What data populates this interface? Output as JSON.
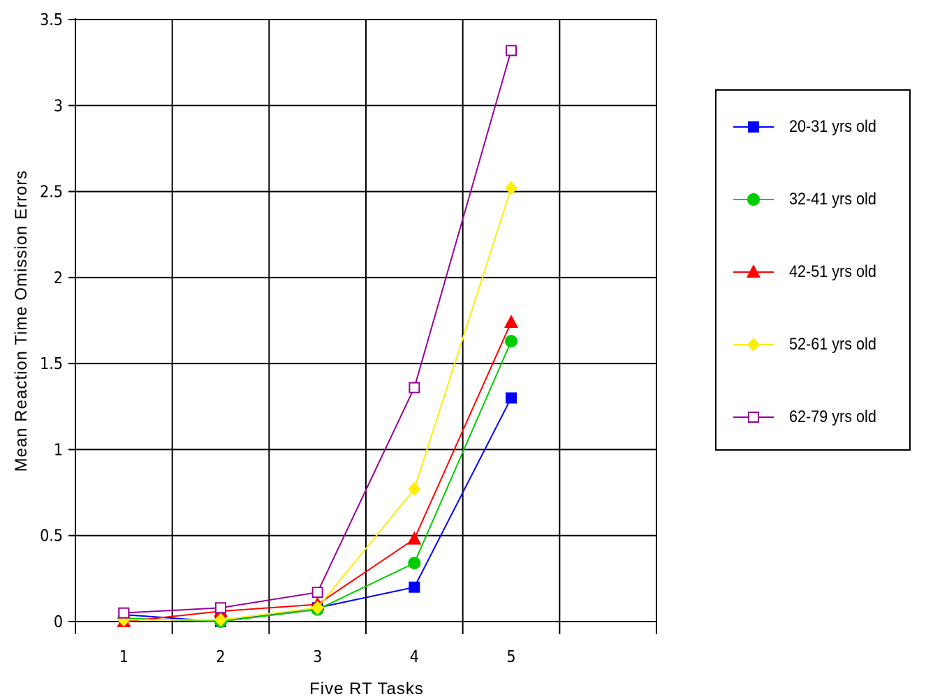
{
  "chart_data": {
    "type": "line",
    "title": "",
    "xlabel": "Five RT Tasks",
    "ylabel": "Mean Reaction Time Omission Errors",
    "x": [
      1,
      2,
      3,
      4,
      5
    ],
    "x_ticks": [
      "1",
      "2",
      "3",
      "4",
      "5"
    ],
    "xlim": [
      0.5,
      6.5
    ],
    "ylim": [
      0,
      3.5
    ],
    "y_ticks": [
      "0",
      "0.5",
      "1",
      "1.5",
      "2",
      "2.5",
      "3",
      "3.5"
    ],
    "grid": true,
    "legend_position": "right",
    "series": [
      {
        "name": "20-31 yrs old",
        "color": "#0000ff",
        "marker": "square-filled",
        "values": [
          0.04,
          0.0,
          0.08,
          0.2,
          1.3
        ]
      },
      {
        "name": "32-41 yrs old",
        "color": "#00cc00",
        "marker": "circle-filled",
        "values": [
          0.02,
          0.0,
          0.07,
          0.34,
          1.63
        ]
      },
      {
        "name": "42-51 yrs old",
        "color": "#ff0000",
        "marker": "triangle-filled",
        "values": [
          0.0,
          0.06,
          0.1,
          0.48,
          1.74
        ]
      },
      {
        "name": "52-61 yrs old",
        "color": "#ffee00",
        "marker": "diamond-filled",
        "values": [
          0.01,
          0.01,
          0.08,
          0.77,
          2.52
        ]
      },
      {
        "name": "62-79 yrs old",
        "color": "#990099",
        "marker": "square-open",
        "values": [
          0.05,
          0.08,
          0.17,
          1.36,
          3.32
        ]
      }
    ]
  }
}
